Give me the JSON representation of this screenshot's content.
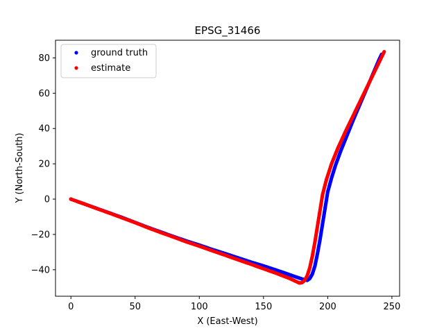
{
  "chart_data": {
    "type": "scatter",
    "title": "EPSG_31466",
    "xlabel": "X (East-West)",
    "ylabel": "Y (North-South)",
    "xlim": [
      -12,
      256
    ],
    "ylim": [
      -55,
      90
    ],
    "xticks": [
      0,
      50,
      100,
      150,
      200,
      250
    ],
    "yticks": [
      -40,
      -20,
      0,
      20,
      40,
      60,
      80
    ],
    "grid": false,
    "legend_position": "top-left",
    "series": [
      {
        "name": "ground truth",
        "color": "#0000ff",
        "points": [
          [
            0,
            0
          ],
          [
            10,
            -2.6
          ],
          [
            20,
            -5.2
          ],
          [
            30,
            -7.8
          ],
          [
            40,
            -10.4
          ],
          [
            50,
            -13.2
          ],
          [
            60,
            -16.0
          ],
          [
            70,
            -18.6
          ],
          [
            80,
            -21.2
          ],
          [
            90,
            -23.7
          ],
          [
            100,
            -26.0
          ],
          [
            110,
            -28.5
          ],
          [
            120,
            -30.8
          ],
          [
            130,
            -33.2
          ],
          [
            140,
            -35.6
          ],
          [
            150,
            -37.8
          ],
          [
            160,
            -40.2
          ],
          [
            170,
            -42.7
          ],
          [
            175,
            -44.0
          ],
          [
            180,
            -45.2
          ],
          [
            184,
            -46.0
          ],
          [
            186,
            -45.0
          ],
          [
            188,
            -42.5
          ],
          [
            190,
            -38.0
          ],
          [
            192,
            -31.0
          ],
          [
            194,
            -23.0
          ],
          [
            196,
            -14.0
          ],
          [
            198,
            -5.0
          ],
          [
            200,
            4.0
          ],
          [
            203,
            12.0
          ],
          [
            206,
            19.0
          ],
          [
            210,
            27.0
          ],
          [
            215,
            36.0
          ],
          [
            220,
            45.0
          ],
          [
            225,
            53.5
          ],
          [
            230,
            62.0
          ],
          [
            235,
            70.5
          ],
          [
            240,
            79.0
          ],
          [
            242,
            82.0
          ]
        ]
      },
      {
        "name": "estimate",
        "color": "#ff0000",
        "points": [
          [
            0,
            0
          ],
          [
            10,
            -2.6
          ],
          [
            20,
            -5.3
          ],
          [
            30,
            -7.9
          ],
          [
            40,
            -10.6
          ],
          [
            50,
            -13.3
          ],
          [
            60,
            -16.2
          ],
          [
            70,
            -18.9
          ],
          [
            80,
            -21.5
          ],
          [
            90,
            -24.2
          ],
          [
            100,
            -26.6
          ],
          [
            110,
            -29.2
          ],
          [
            120,
            -31.7
          ],
          [
            130,
            -34.3
          ],
          [
            140,
            -36.8
          ],
          [
            150,
            -39.4
          ],
          [
            160,
            -42.0
          ],
          [
            170,
            -44.8
          ],
          [
            175,
            -46.5
          ],
          [
            178,
            -47.5
          ],
          [
            180,
            -47.3
          ],
          [
            182,
            -46.0
          ],
          [
            184,
            -43.5
          ],
          [
            186,
            -39.0
          ],
          [
            188,
            -32.5
          ],
          [
            190,
            -24.5
          ],
          [
            192,
            -15.5
          ],
          [
            194,
            -6.5
          ],
          [
            196,
            2.5
          ],
          [
            199,
            11.0
          ],
          [
            203,
            20.0
          ],
          [
            208,
            29.0
          ],
          [
            214,
            38.5
          ],
          [
            220,
            47.5
          ],
          [
            226,
            56.5
          ],
          [
            232,
            65.5
          ],
          [
            238,
            74.5
          ],
          [
            242,
            80.5
          ],
          [
            244,
            83.5
          ]
        ]
      }
    ]
  }
}
